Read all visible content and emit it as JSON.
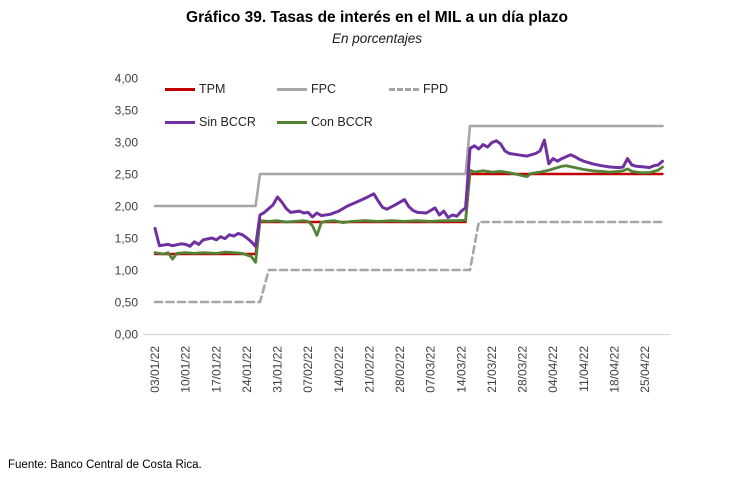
{
  "title": "Gráfico 39. Tasas de interés en el MIL a un día plazo",
  "subtitle": "En porcentajes",
  "source": "Fuente: Banco Central de Costa Rica.",
  "colors": {
    "tpm": "#C00000",
    "fpc": "#A6A6A6",
    "fpd": "#A6A6A6",
    "sin_bccr": "#7030A0",
    "con_bccr": "#548235",
    "axis_line": "#D9D9D9",
    "tick_text": "#404040",
    "title_text": "#000000"
  },
  "chart_data": {
    "type": "line",
    "title": "Gráfico 39. Tasas de interés en el MIL a un día plazo",
    "subtitle": "En porcentajes",
    "grid": false,
    "x_axis": {
      "unit": "date (dd/mm/yy), daily series, day 0 = 03/01/22",
      "tick_days": [
        0,
        7,
        14,
        21,
        28,
        35,
        42,
        49,
        56,
        63,
        70,
        77,
        84,
        91,
        98,
        105,
        112
      ],
      "tick_labels": [
        "03/01/22",
        "10/01/22",
        "17/01/22",
        "24/01/22",
        "31/01/22",
        "07/02/22",
        "14/02/22",
        "21/02/22",
        "28/02/22",
        "07/03/22",
        "14/03/22",
        "21/03/22",
        "28/03/22",
        "04/04/22",
        "11/04/22",
        "18/04/22",
        "25/04/22"
      ],
      "range_days": [
        0,
        116
      ]
    },
    "y_axis": {
      "min": 0,
      "max": 4,
      "step": 0.5,
      "tick_values": [
        0,
        0.5,
        1,
        1.5,
        2,
        2.5,
        3,
        3.5,
        4
      ],
      "tick_labels": [
        "0,00",
        "0,50",
        "1,00",
        "1,50",
        "2,00",
        "2,50",
        "3,00",
        "3,50",
        "4,00"
      ]
    },
    "legend": {
      "position": "top-left-inside",
      "rows": [
        [
          "TPM",
          "FPC",
          "FPD"
        ],
        [
          "Sin BCCR",
          "Con BCCR"
        ]
      ]
    },
    "series": [
      {
        "name": "TPM",
        "color": "#C00000",
        "dash": false,
        "points": [
          [
            0,
            1.25
          ],
          [
            23,
            1.25
          ],
          [
            24,
            1.75
          ],
          [
            71,
            1.75
          ],
          [
            72,
            2.5
          ],
          [
            116,
            2.5
          ]
        ]
      },
      {
        "name": "FPC",
        "color": "#A6A6A6",
        "dash": false,
        "points": [
          [
            0,
            2.0
          ],
          [
            23,
            2.0
          ],
          [
            24,
            2.5
          ],
          [
            71,
            2.5
          ],
          [
            72,
            3.25
          ],
          [
            116,
            3.25
          ]
        ]
      },
      {
        "name": "FPD",
        "color": "#A6A6A6",
        "dash": true,
        "points": [
          [
            0,
            0.5
          ],
          [
            24,
            0.5
          ],
          [
            26,
            1.0
          ],
          [
            72,
            1.0
          ],
          [
            74,
            1.75
          ],
          [
            116,
            1.75
          ]
        ]
      },
      {
        "name": "Sin BCCR",
        "color": "#7030A0",
        "dash": false,
        "points": [
          [
            0,
            1.65
          ],
          [
            1,
            1.38
          ],
          [
            3,
            1.4
          ],
          [
            4,
            1.38
          ],
          [
            6,
            1.41
          ],
          [
            7,
            1.4
          ],
          [
            8,
            1.37
          ],
          [
            9,
            1.44
          ],
          [
            10,
            1.4
          ],
          [
            11,
            1.47
          ],
          [
            13,
            1.5
          ],
          [
            14,
            1.47
          ],
          [
            15,
            1.52
          ],
          [
            16,
            1.49
          ],
          [
            17,
            1.55
          ],
          [
            18,
            1.53
          ],
          [
            19,
            1.57
          ],
          [
            20,
            1.55
          ],
          [
            21,
            1.5
          ],
          [
            22,
            1.44
          ],
          [
            23,
            1.37
          ],
          [
            24,
            1.86
          ],
          [
            25,
            1.9
          ],
          [
            27,
            2.02
          ],
          [
            28,
            2.14
          ],
          [
            29,
            2.06
          ],
          [
            30,
            1.96
          ],
          [
            31,
            1.9
          ],
          [
            33,
            1.92
          ],
          [
            34,
            1.89
          ],
          [
            35,
            1.9
          ],
          [
            36,
            1.83
          ],
          [
            37,
            1.89
          ],
          [
            38,
            1.85
          ],
          [
            40,
            1.87
          ],
          [
            42,
            1.92
          ],
          [
            44,
            2.0
          ],
          [
            46,
            2.06
          ],
          [
            48,
            2.12
          ],
          [
            50,
            2.19
          ],
          [
            51,
            2.08
          ],
          [
            52,
            1.98
          ],
          [
            53,
            1.95
          ],
          [
            55,
            2.02
          ],
          [
            57,
            2.1
          ],
          [
            58,
            1.99
          ],
          [
            59,
            1.93
          ],
          [
            60,
            1.9
          ],
          [
            62,
            1.89
          ],
          [
            63,
            1.93
          ],
          [
            64,
            1.97
          ],
          [
            65,
            1.86
          ],
          [
            66,
            1.92
          ],
          [
            67,
            1.82
          ],
          [
            68,
            1.86
          ],
          [
            69,
            1.84
          ],
          [
            70,
            1.92
          ],
          [
            71,
            1.97
          ],
          [
            72,
            2.9
          ],
          [
            73,
            2.94
          ],
          [
            74,
            2.89
          ],
          [
            75,
            2.96
          ],
          [
            76,
            2.92
          ],
          [
            77,
            2.99
          ],
          [
            78,
            3.02
          ],
          [
            79,
            2.97
          ],
          [
            80,
            2.86
          ],
          [
            81,
            2.82
          ],
          [
            83,
            2.8
          ],
          [
            85,
            2.78
          ],
          [
            87,
            2.82
          ],
          [
            88,
            2.86
          ],
          [
            89,
            3.03
          ],
          [
            90,
            2.66
          ],
          [
            91,
            2.74
          ],
          [
            92,
            2.7
          ],
          [
            93,
            2.74
          ],
          [
            95,
            2.8
          ],
          [
            96,
            2.77
          ],
          [
            97,
            2.73
          ],
          [
            98,
            2.7
          ],
          [
            100,
            2.66
          ],
          [
            102,
            2.63
          ],
          [
            104,
            2.61
          ],
          [
            106,
            2.6
          ],
          [
            107,
            2.61
          ],
          [
            108,
            2.74
          ],
          [
            109,
            2.64
          ],
          [
            110,
            2.62
          ],
          [
            112,
            2.61
          ],
          [
            113,
            2.6
          ],
          [
            114,
            2.63
          ],
          [
            115,
            2.64
          ],
          [
            116,
            2.7
          ]
        ]
      },
      {
        "name": "Con BCCR",
        "color": "#548235",
        "dash": false,
        "points": [
          [
            0,
            1.27
          ],
          [
            2,
            1.25
          ],
          [
            3,
            1.27
          ],
          [
            4,
            1.17
          ],
          [
            5,
            1.26
          ],
          [
            7,
            1.27
          ],
          [
            9,
            1.26
          ],
          [
            11,
            1.27
          ],
          [
            14,
            1.26
          ],
          [
            16,
            1.28
          ],
          [
            18,
            1.27
          ],
          [
            20,
            1.26
          ],
          [
            22,
            1.21
          ],
          [
            23,
            1.12
          ],
          [
            24,
            1.77
          ],
          [
            26,
            1.76
          ],
          [
            28,
            1.77
          ],
          [
            30,
            1.75
          ],
          [
            32,
            1.76
          ],
          [
            34,
            1.77
          ],
          [
            35,
            1.76
          ],
          [
            36,
            1.69
          ],
          [
            37,
            1.54
          ],
          [
            38,
            1.74
          ],
          [
            39,
            1.76
          ],
          [
            41,
            1.77
          ],
          [
            43,
            1.74
          ],
          [
            45,
            1.76
          ],
          [
            48,
            1.77
          ],
          [
            51,
            1.76
          ],
          [
            54,
            1.77
          ],
          [
            57,
            1.76
          ],
          [
            60,
            1.77
          ],
          [
            63,
            1.76
          ],
          [
            66,
            1.77
          ],
          [
            69,
            1.77
          ],
          [
            71,
            1.78
          ],
          [
            72,
            2.56
          ],
          [
            73,
            2.53
          ],
          [
            75,
            2.55
          ],
          [
            77,
            2.53
          ],
          [
            79,
            2.54
          ],
          [
            81,
            2.52
          ],
          [
            83,
            2.49
          ],
          [
            85,
            2.46
          ],
          [
            86,
            2.51
          ],
          [
            88,
            2.53
          ],
          [
            90,
            2.56
          ],
          [
            91,
            2.58
          ],
          [
            93,
            2.62
          ],
          [
            94,
            2.63
          ],
          [
            96,
            2.6
          ],
          [
            98,
            2.57
          ],
          [
            100,
            2.55
          ],
          [
            102,
            2.54
          ],
          [
            104,
            2.53
          ],
          [
            106,
            2.54
          ],
          [
            107,
            2.55
          ],
          [
            108,
            2.58
          ],
          [
            109,
            2.54
          ],
          [
            111,
            2.52
          ],
          [
            113,
            2.52
          ],
          [
            114,
            2.54
          ],
          [
            115,
            2.56
          ],
          [
            116,
            2.61
          ]
        ]
      }
    ]
  }
}
